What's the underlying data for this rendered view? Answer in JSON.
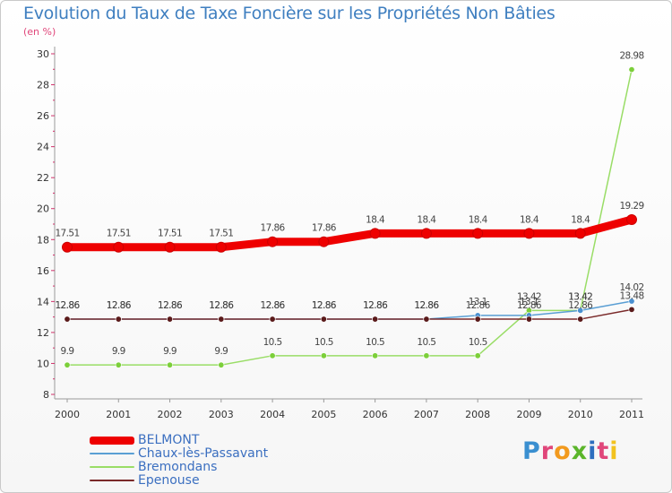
{
  "header": {
    "title": "Evolution du Taux de Taxe Foncière sur les Propriétés Non Bâties",
    "subtitle": "(en %)"
  },
  "logo": {
    "text": "Proxiti",
    "colors": [
      "#3a8fd0",
      "#e0467a",
      "#f29a1e",
      "#5bb52b",
      "#2e6fbf",
      "#e0467a",
      "#f2c21e"
    ]
  },
  "chart_data": {
    "type": "line",
    "title": "Evolution du Taux de Taxe Foncière sur les Propriétés Non Bâties",
    "ylabel": "(en %)",
    "xlabel": "",
    "categories": [
      "2000",
      "2001",
      "2002",
      "2003",
      "2004",
      "2005",
      "2006",
      "2007",
      "2008",
      "2009",
      "2010",
      "2011"
    ],
    "ylim": [
      8,
      30
    ],
    "yticks": [
      "8",
      "10",
      "12",
      "14",
      "16",
      "18",
      "20",
      "22",
      "24",
      "26",
      "28",
      "30"
    ],
    "grid": false,
    "legend_position": "bottom-left",
    "series": [
      {
        "name": "BELMONT",
        "color": "#ee0000",
        "values": [
          17.51,
          17.51,
          17.51,
          17.51,
          17.86,
          17.86,
          18.4,
          18.4,
          18.4,
          18.4,
          18.4,
          19.29
        ],
        "labels": [
          "17.51",
          "17.51",
          "17.51",
          "17.51",
          "17.86",
          "17.86",
          "18.4",
          "18.4",
          "18.4",
          "18.4",
          "18.4",
          "19.29"
        ]
      },
      {
        "name": "Chaux-lès-Passavant",
        "color": "#5a9fd4",
        "values": [
          12.86,
          12.86,
          12.86,
          12.86,
          12.86,
          12.86,
          12.86,
          12.86,
          13.1,
          13.1,
          13.42,
          14.02
        ],
        "labels": [
          "12.86",
          "12.86",
          "12.86",
          "12.86",
          "12.86",
          "12.86",
          "12.86",
          "12.86",
          "13.1",
          "13.1",
          "13.42",
          "14.02"
        ]
      },
      {
        "name": "Bremondans",
        "color": "#99dd66",
        "values": [
          9.9,
          9.9,
          9.9,
          9.9,
          10.5,
          10.5,
          10.5,
          10.5,
          10.5,
          13.42,
          13.42,
          28.98
        ],
        "labels": [
          "9.9",
          "9.9",
          "9.9",
          "9.9",
          "10.5",
          "10.5",
          "10.5",
          "10.5",
          "10.5",
          "13.42",
          "13.42",
          "28.98"
        ]
      },
      {
        "name": "Epenouse",
        "color": "#7a2a2a",
        "values": [
          12.86,
          12.86,
          12.86,
          12.86,
          12.86,
          12.86,
          12.86,
          12.86,
          12.86,
          12.86,
          12.86,
          13.48
        ],
        "labels": [
          "12.86",
          "12.86",
          "12.86",
          "12.86",
          "12.86",
          "12.86",
          "12.86",
          "12.86",
          "12.86",
          "12.86",
          "12.86",
          "13.48"
        ]
      }
    ]
  }
}
